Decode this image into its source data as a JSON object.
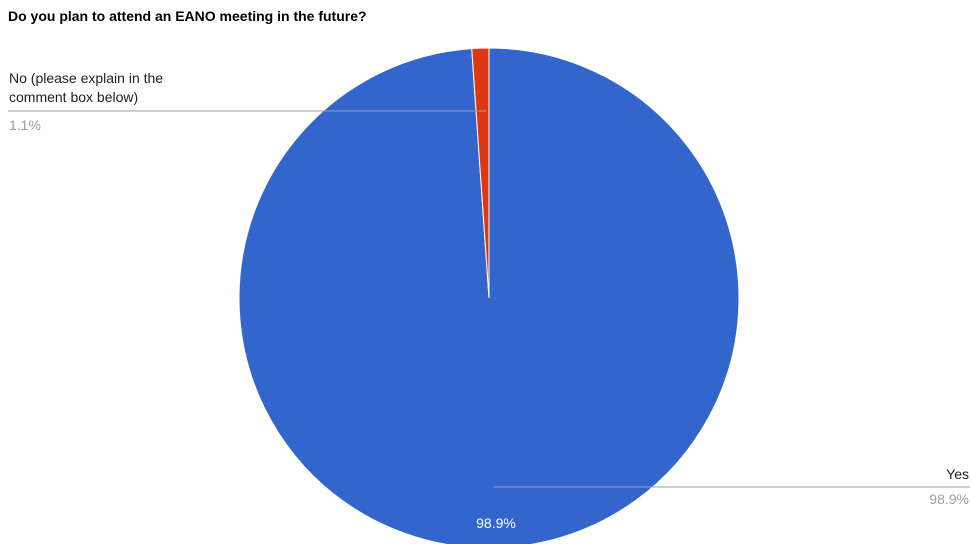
{
  "chart_data": {
    "type": "pie",
    "title": "Do you plan to attend an EANO meeting in the future?",
    "slices": [
      {
        "name": "Yes",
        "value": 98.9,
        "percent_label": "98.9%",
        "color": "#3366cc",
        "label_lines": [
          "Yes"
        ]
      },
      {
        "name": "No (please explain in the comment box below)",
        "value": 1.1,
        "percent_label": "1.1%",
        "color": "#dc3912",
        "label_lines": [
          "No (please explain in the",
          "comment box below)"
        ]
      }
    ],
    "inner_label": "98.9%",
    "legend": "labeled"
  },
  "colors": {
    "label_text": "#222222",
    "percent_text": "#9e9e9e",
    "leader_line": "#9e9e9e",
    "inner_label_text": "#ffffff"
  }
}
